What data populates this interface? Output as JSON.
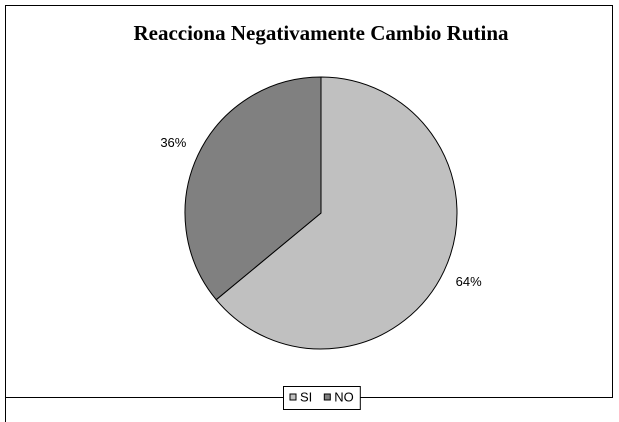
{
  "chart_data": {
    "type": "pie",
    "title": "Reacciona Negativamente Cambio Rutina",
    "categories": [
      "SI",
      "NO"
    ],
    "values": [
      64,
      36
    ],
    "value_labels": [
      "64%",
      "36%"
    ],
    "colors": [
      "#c0c0c0",
      "#808080"
    ],
    "legend": "bottom"
  }
}
